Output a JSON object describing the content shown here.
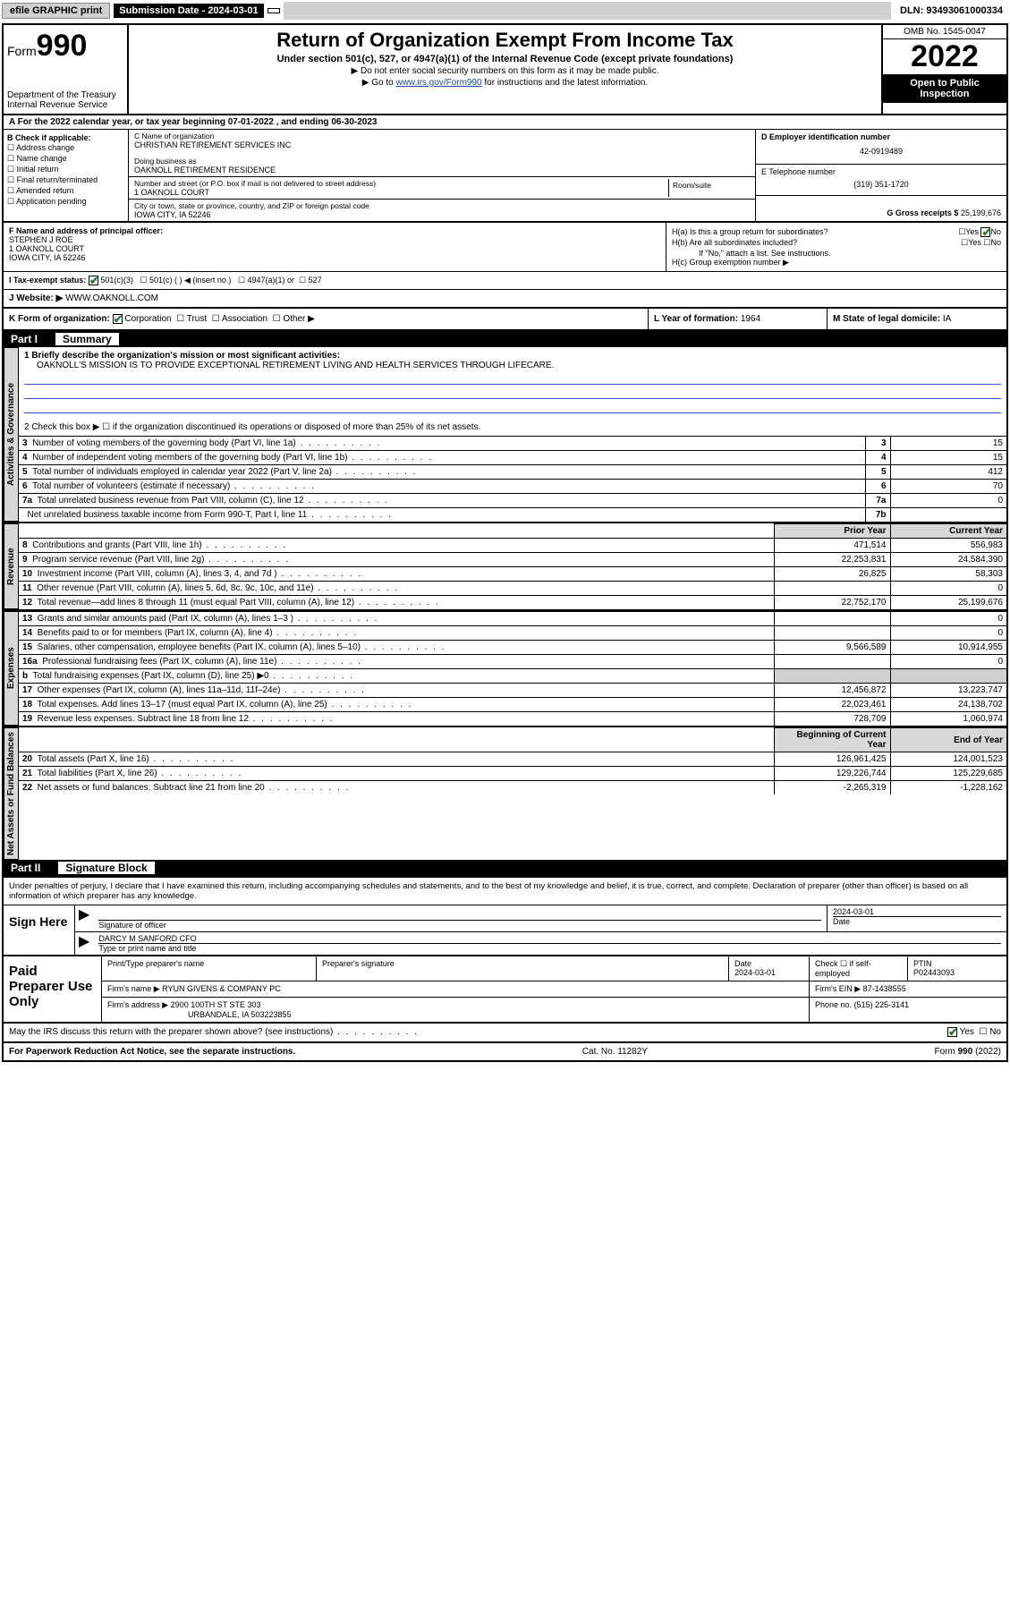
{
  "topbar": {
    "efile": "efile GRAPHIC print",
    "submission_label": "Submission Date - 2024-03-01",
    "dln": "DLN: 93493061000334"
  },
  "header": {
    "form_word": "Form",
    "form_num": "990",
    "dept": "Department of the Treasury",
    "irs": "Internal Revenue Service",
    "title": "Return of Organization Exempt From Income Tax",
    "sub": "Under section 501(c), 527, or 4947(a)(1) of the Internal Revenue Code (except private foundations)",
    "note1": "▶ Do not enter social security numbers on this form as it may be made public.",
    "note2_pre": "▶ Go to ",
    "note2_link": "www.irs.gov/Form990",
    "note2_post": " for instructions and the latest information.",
    "omb": "OMB No. 1545-0047",
    "year": "2022",
    "inspection": "Open to Public Inspection"
  },
  "row_a": "A For the 2022 calendar year, or tax year beginning 07-01-2022   , and ending 06-30-2023",
  "col_b": {
    "label": "B Check if applicable:",
    "items": [
      "Address change",
      "Name change",
      "Initial return",
      "Final return/terminated",
      "Amended return",
      "Application pending"
    ]
  },
  "col_c": {
    "name_lbl": "C Name of organization",
    "name": "CHRISTIAN RETIREMENT SERVICES INC",
    "dba_lbl": "Doing business as",
    "dba": "OAKNOLL RETIREMENT RESIDENCE",
    "addr_lbl": "Number and street (or P.O. box if mail is not delivered to street address)",
    "room_lbl": "Room/suite",
    "addr": "1 OAKNOLL COURT",
    "city_lbl": "City or town, state or province, country, and ZIP or foreign postal code",
    "city": "IOWA CITY, IA  52246"
  },
  "col_d": {
    "d_lbl": "D Employer identification number",
    "ein": "42-0919489",
    "e_lbl": "E Telephone number",
    "phone": "(319) 351-1720",
    "g_lbl": "G Gross receipts $",
    "gross": "25,199,676"
  },
  "section_f": {
    "lbl": "F Name and address of principal officer:",
    "name": "STEPHEN J ROE",
    "addr1": "1 OAKNOLL COURT",
    "addr2": "IOWA CITY, IA  52246"
  },
  "section_h": {
    "ha": "H(a)  Is this a group return for subordinates?",
    "hb": "H(b)  Are all subordinates included?",
    "hb_note": "If \"No,\" attach a list. See instructions.",
    "hc": "H(c)  Group exemption number ▶",
    "yes": "Yes",
    "no": "No"
  },
  "section_i": {
    "lbl": "I   Tax-exempt status:",
    "opts": [
      "501(c)(3)",
      "501(c) (  ) ◀ (insert no.)",
      "4947(a)(1) or",
      "527"
    ]
  },
  "section_j": {
    "lbl": "J   Website: ▶",
    "val": " WWW.OAKNOLL.COM"
  },
  "section_k": {
    "k1": "K Form of organization:",
    "opts": [
      "Corporation",
      "Trust",
      "Association",
      "Other ▶"
    ],
    "k2_lbl": "L Year of formation:",
    "k2_val": "1964",
    "k3_lbl": "M State of legal domicile:",
    "k3_val": "IA"
  },
  "part1": {
    "label": "Part I",
    "title": "Summary",
    "q1": "1  Briefly describe the organization's mission or most significant activities:",
    "mission": "OAKNOLL'S MISSION IS TO PROVIDE EXCEPTIONAL RETIREMENT LIVING AND HEALTH SERVICES THROUGH LIFECARE.",
    "q2": "2   Check this box ▶ ☐  if the organization discontinued its operations or disposed of more than 25% of its net assets.",
    "sides": {
      "gov": "Activities & Governance",
      "rev": "Revenue",
      "exp": "Expenses",
      "net": "Net Assets or Fund Balances"
    },
    "gov_rows": [
      {
        "n": "3",
        "t": "Number of voting members of the governing body (Part VI, line 1a)",
        "box": "3",
        "v": "15"
      },
      {
        "n": "4",
        "t": "Number of independent voting members of the governing body (Part VI, line 1b)",
        "box": "4",
        "v": "15"
      },
      {
        "n": "5",
        "t": "Total number of individuals employed in calendar year 2022 (Part V, line 2a)",
        "box": "5",
        "v": "412"
      },
      {
        "n": "6",
        "t": "Total number of volunteers (estimate if necessary)",
        "box": "6",
        "v": "70"
      },
      {
        "n": "7a",
        "t": "Total unrelated business revenue from Part VIII, column (C), line 12",
        "box": "7a",
        "v": "0"
      },
      {
        "n": "",
        "t": "Net unrelated business taxable income from Form 990-T, Part I, line 11",
        "box": "7b",
        "v": ""
      }
    ],
    "head_prior": "Prior Year",
    "head_current": "Current Year",
    "rev_rows": [
      {
        "n": "8",
        "t": "Contributions and grants (Part VIII, line 1h)",
        "p": "471,514",
        "c": "556,983"
      },
      {
        "n": "9",
        "t": "Program service revenue (Part VIII, line 2g)",
        "p": "22,253,831",
        "c": "24,584,390"
      },
      {
        "n": "10",
        "t": "Investment income (Part VIII, column (A), lines 3, 4, and 7d )",
        "p": "26,825",
        "c": "58,303"
      },
      {
        "n": "11",
        "t": "Other revenue (Part VIII, column (A), lines 5, 6d, 8c, 9c, 10c, and 11e)",
        "p": "",
        "c": "0"
      },
      {
        "n": "12",
        "t": "Total revenue—add lines 8 through 11 (must equal Part VIII, column (A), line 12)",
        "p": "22,752,170",
        "c": "25,199,676"
      }
    ],
    "exp_rows": [
      {
        "n": "13",
        "t": "Grants and similar amounts paid (Part IX, column (A), lines 1–3 )",
        "p": "",
        "c": "0"
      },
      {
        "n": "14",
        "t": "Benefits paid to or for members (Part IX, column (A), line 4)",
        "p": "",
        "c": "0"
      },
      {
        "n": "15",
        "t": "Salaries, other compensation, employee benefits (Part IX, column (A), lines 5–10)",
        "p": "9,566,589",
        "c": "10,914,955"
      },
      {
        "n": "16a",
        "t": "Professional fundraising fees (Part IX, column (A), line 11e)",
        "p": "",
        "c": "0"
      },
      {
        "n": "b",
        "t": "Total fundraising expenses (Part IX, column (D), line 25) ▶0",
        "p": "GRAY",
        "c": "GRAY"
      },
      {
        "n": "17",
        "t": "Other expenses (Part IX, column (A), lines 11a–11d, 11f–24e)",
        "p": "12,456,872",
        "c": "13,223,747"
      },
      {
        "n": "18",
        "t": "Total expenses. Add lines 13–17 (must equal Part IX, column (A), line 25)",
        "p": "22,023,461",
        "c": "24,138,702"
      },
      {
        "n": "19",
        "t": "Revenue less expenses. Subtract line 18 from line 12",
        "p": "728,709",
        "c": "1,060,974"
      }
    ],
    "head_begin": "Beginning of Current Year",
    "head_end": "End of Year",
    "net_rows": [
      {
        "n": "20",
        "t": "Total assets (Part X, line 16)",
        "p": "126,961,425",
        "c": "124,001,523"
      },
      {
        "n": "21",
        "t": "Total liabilities (Part X, line 26)",
        "p": "129,226,744",
        "c": "125,229,685"
      },
      {
        "n": "22",
        "t": "Net assets or fund balances. Subtract line 21 from line 20",
        "p": "-2,265,319",
        "c": "-1,228,162"
      }
    ]
  },
  "part2": {
    "label": "Part II",
    "title": "Signature Block",
    "note": "Under penalties of perjury, I declare that I have examined this return, including accompanying schedules and statements, and to the best of my knowledge and belief, it is true, correct, and complete. Declaration of preparer (other than officer) is based on all information of which preparer has any knowledge.",
    "sign_here": "Sign Here",
    "sig_officer": "Signature of officer",
    "sig_date": "2024-03-01",
    "date_lbl": "Date",
    "officer_name": "DARCY M SANFORD CFO",
    "type_name": "Type or print name and title",
    "paid": "Paid Preparer Use Only",
    "prep_name_lbl": "Print/Type preparer's name",
    "prep_sig_lbl": "Preparer's signature",
    "prep_date_lbl": "Date",
    "prep_date": "2024-03-01",
    "check_self": "Check ☐ if self-employed",
    "ptin_lbl": "PTIN",
    "ptin": "P02443093",
    "firm_name_lbl": "Firm's name   ▶",
    "firm_name": "RYUN GIVENS & COMPANY PC",
    "firm_ein_lbl": "Firm's EIN ▶",
    "firm_ein": "87-1438555",
    "firm_addr_lbl": "Firm's address ▶",
    "firm_addr1": "2900 100TH ST STE 303",
    "firm_addr2": "URBANDALE, IA  503223855",
    "phone_lbl": "Phone no.",
    "phone": "(515) 225-3141",
    "discuss": "May the IRS discuss this return with the preparer shown above? (see instructions)",
    "paperwork": "For Paperwork Reduction Act Notice, see the separate instructions.",
    "cat": "Cat. No. 11282Y",
    "formno": "Form 990 (2022)"
  },
  "colors": {
    "link": "#1a4ba8",
    "check_green": "#2a7a3a",
    "gray_bg": "#d8d8d8"
  }
}
